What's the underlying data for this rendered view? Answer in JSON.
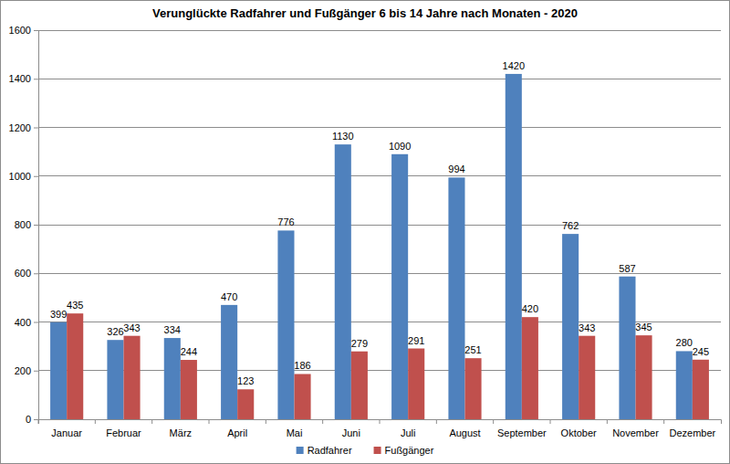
{
  "chart_data": {
    "type": "bar",
    "title": "Verunglückte Radfahrer und Fußgänger 6 bis 14 Jahre nach Monaten - 2020",
    "categories": [
      "Januar",
      "Februar",
      "März",
      "April",
      "Mai",
      "Juni",
      "Juli",
      "August",
      "September",
      "Oktober",
      "November",
      "Dezember"
    ],
    "series": [
      {
        "name": "Radfahrer",
        "color": "#4f81bd",
        "values": [
          399,
          326,
          334,
          470,
          776,
          1130,
          1090,
          994,
          1420,
          762,
          587,
          280
        ]
      },
      {
        "name": "Fußgänger",
        "color": "#c0504d",
        "values": [
          435,
          343,
          244,
          123,
          186,
          279,
          291,
          251,
          420,
          343,
          345,
          245
        ]
      }
    ],
    "ylim": [
      0,
      1600
    ],
    "yticks": [
      0,
      200,
      400,
      600,
      800,
      1000,
      1200,
      1400,
      1600
    ],
    "grid": true,
    "legend": "bottom",
    "data_labels": true
  }
}
